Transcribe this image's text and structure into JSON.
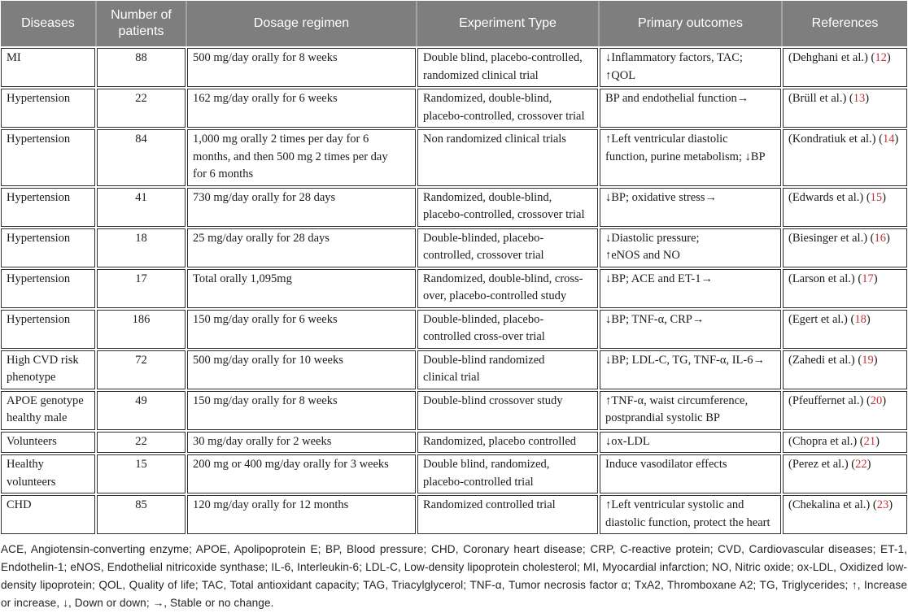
{
  "table": {
    "headers": [
      "Diseases",
      "Number of\npatients",
      "Dosage regimen",
      "Experiment Type",
      "Primary outcomes",
      "References"
    ],
    "paren_open": "(",
    "paren_close": ")",
    "rows": [
      {
        "disease": "MI",
        "patients": "88",
        "dosage": "500 mg/day orally for 8 weeks",
        "experiment": "Double blind, placebo-controlled,\nrandomized clinical trial",
        "outcomes": "↓Inflammatory factors, TAC;\n↑QOL",
        "ref_authors": "(Dehghani et al.)",
        "ref_number": "12"
      },
      {
        "disease": "Hypertension",
        "patients": "22",
        "dosage": "162 mg/day orally for 6 weeks",
        "experiment": "Randomized, double-blind,\nplacebo-controlled, crossover trial",
        "outcomes": "BP and endothelial function→",
        "ref_authors": "(Brüll et al.)",
        "ref_number": "13"
      },
      {
        "disease": "Hypertension",
        "patients": "84",
        "dosage": "1,000 mg orally 2 times per day for 6\nmonths, and then 500 mg 2 times per day\nfor 6 months",
        "experiment": "Non randomized clinical trials",
        "outcomes": "↑Left ventricular diastolic\nfunction, purine metabolism; ↓BP",
        "ref_authors": "(Kondratiuk et al.)",
        "ref_number": "14"
      },
      {
        "disease": "Hypertension",
        "patients": "41",
        "dosage": "730 mg/day orally for 28 days",
        "experiment": "Randomized, double-blind,\nplacebo-controlled, crossover trial",
        "outcomes": "↓BP; oxidative stress→",
        "ref_authors": "(Edwards et al.)",
        "ref_number": "15"
      },
      {
        "disease": "Hypertension",
        "patients": "18",
        "dosage": "25 mg/day orally for 28 days",
        "experiment": "Double-blinded, placebo-\ncontrolled, crossover trial",
        "outcomes": "↓Diastolic pressure;\n↑eNOS and NO",
        "ref_authors": "(Biesinger et al.)",
        "ref_number": "16"
      },
      {
        "disease": "Hypertension",
        "patients": "17",
        "dosage": "Total orally 1,095mg",
        "experiment": "Randomized, double-blind, cross-\nover, placebo-controlled study",
        "outcomes": "↓BP; ACE and ET-1→",
        "ref_authors": "(Larson et al.)",
        "ref_number": "17"
      },
      {
        "disease": "Hypertension",
        "patients": "186",
        "dosage": "150 mg/day orally for 6 weeks",
        "experiment": "Double-blinded, placebo-\ncontrolled cross-over trial",
        "outcomes": "↓BP; TNF-α, CRP→",
        "ref_authors": "(Egert et al.)",
        "ref_number": "18"
      },
      {
        "disease": "High CVD risk\nphenotype",
        "patients": "72",
        "dosage": "500 mg/day orally for 10 weeks",
        "experiment": "Double-blind randomized\nclinical trial",
        "outcomes": "↓BP; LDL-C, TG, TNF-α, IL-6→",
        "ref_authors": "(Zahedi et al.)",
        "ref_number": "19"
      },
      {
        "disease": "APOE genotype\nhealthy male",
        "patients": "49",
        "dosage": "150 mg/day orally for 8 weeks",
        "experiment": "Double-blind crossover study",
        "outcomes": "↑TNF-α, waist circumference,\npostprandial systolic BP",
        "ref_authors": "(Pfeuffernet al.)",
        "ref_number": "20"
      },
      {
        "disease": "Volunteers",
        "patients": "22",
        "dosage": "30 mg/day orally for 2 weeks",
        "experiment": "Randomized, placebo controlled",
        "outcomes": "↓ox-LDL",
        "ref_authors": "(Chopra et al.)",
        "ref_number": "21"
      },
      {
        "disease": "Healthy\nvolunteers",
        "patients": "15",
        "dosage": "200 mg or 400 mg/day orally for 3 weeks",
        "experiment": "Double blind, randomized,\nplacebo-controlled trial",
        "outcomes": "Induce vasodilator effects",
        "ref_authors": "(Perez et al.)",
        "ref_number": "22"
      },
      {
        "disease": "CHD",
        "patients": "85",
        "dosage": "120 mg/day orally for 12 months",
        "experiment": "Randomized controlled trial",
        "outcomes": "↑Left ventricular systolic and\ndiastolic function, protect the heart",
        "ref_authors": "(Chekalina et al.)",
        "ref_number": "23"
      }
    ]
  },
  "footnote": {
    "text": "ACE, Angiotensin-converting enzyme; APOE, Apolipoprotein E; BP, Blood pressure; CHD, Coronary heart disease; CRP, C-reactive protein; CVD, Cardiovascular diseases; ET-1, Endothelin-1; eNOS, Endothelial nitricoxide synthase; IL-6, Interleukin-6; LDL-C, Low-density lipoprotein cholesterol; MI, Myocardial infarction; NO, Nitric oxide; ox-LDL, Oxidized low-density lipoprotein; QOL, Quality of life; TAC, Total antioxidant capacity; TAG, Triacylglycerol; TNF-α, Tumor necrosis factor α; TxA2, Thromboxane A2; TG, Triglycerides; ↑, Increase or increase, ↓, Down or down; →, Stable or no change."
  },
  "colors": {
    "header_bg": "#7e7e7e",
    "header_text": "#ffffff",
    "ref_number_red": "#c13438",
    "cell_border": "#2e2e2e"
  }
}
